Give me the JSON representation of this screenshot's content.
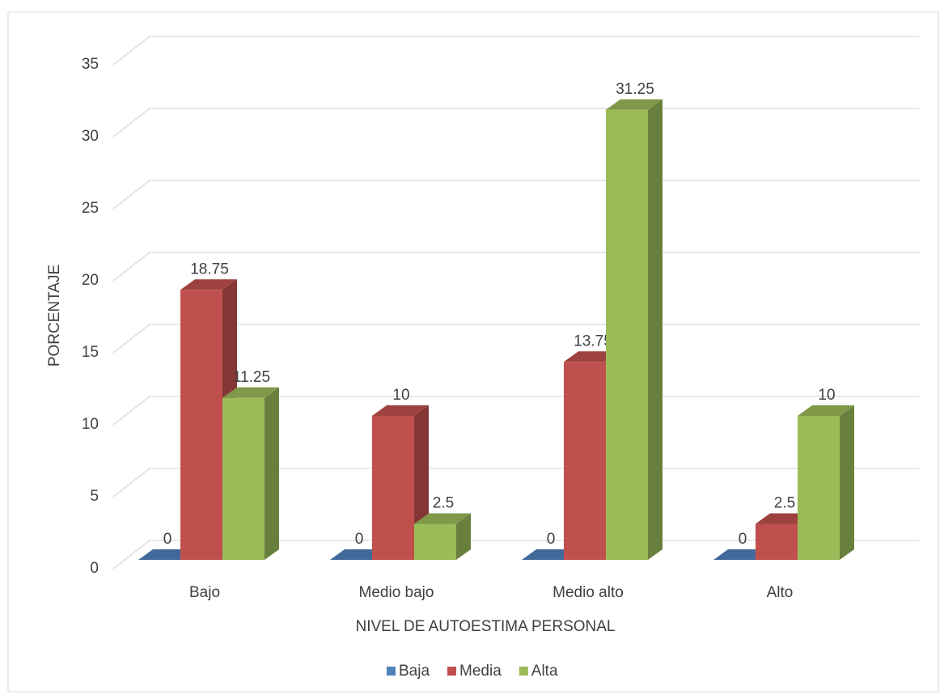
{
  "chart_data": {
    "type": "bar3d",
    "x_label": "NIVEL DE AUTOESTIMA PERSONAL",
    "y_label": "PORCENTAJE",
    "categories": [
      "Bajo",
      "Medio bajo",
      "Medio alto",
      "Alto"
    ],
    "series": [
      {
        "name": "Baja",
        "color": "#4f81bd",
        "values": [
          0,
          0,
          0,
          0
        ]
      },
      {
        "name": "Media",
        "color": "#c0504d",
        "values": [
          18.75,
          10,
          13.75,
          2.5
        ]
      },
      {
        "name": "Alta",
        "color": "#9bbb59",
        "values": [
          11.25,
          2.5,
          31.25,
          10
        ]
      }
    ],
    "ylim": [
      0,
      35
    ],
    "yticks": [
      0,
      5,
      10,
      15,
      20,
      25,
      30,
      35
    ],
    "grid": true,
    "legend": "bottom",
    "data_labels": true
  }
}
